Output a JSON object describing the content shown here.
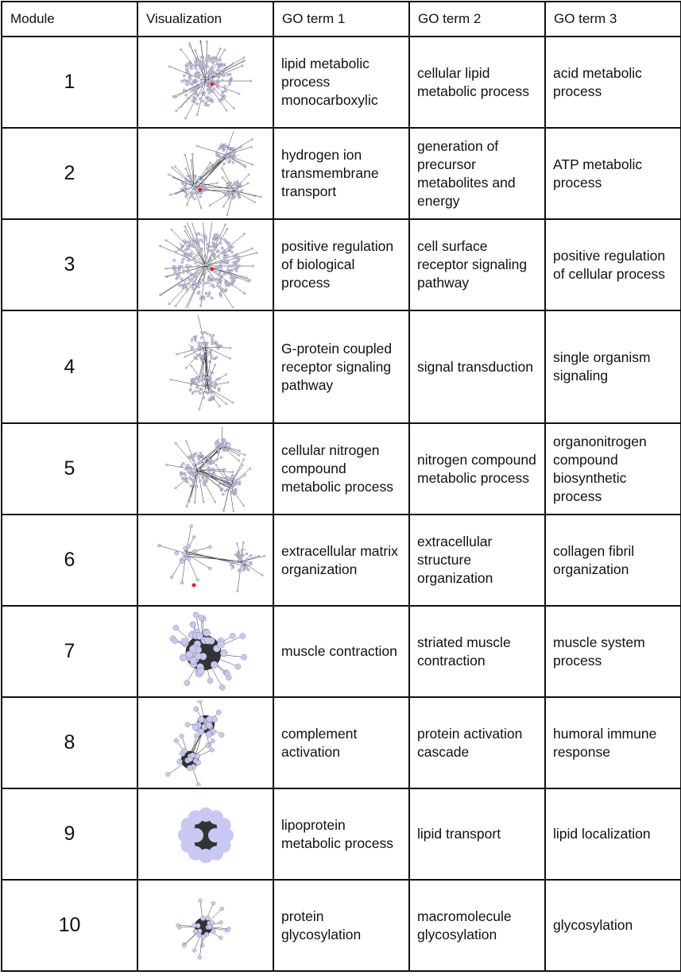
{
  "headers": [
    "Module",
    "Visualization",
    "GO term 1",
    "GO term 2",
    "GO term 3"
  ],
  "rows": [
    {
      "module": "1",
      "go1": "lipid metabolic process monocarboxylic",
      "go2": "cellular lipid metabolic process",
      "go3": "acid metabolic process"
    },
    {
      "module": "2",
      "go1": "hydrogen ion transmembrane transport",
      "go2": "generation of precursor metabolites and energy",
      "go3": "ATP metabolic process"
    },
    {
      "module": "3",
      "go1": "positive regulation of biological process",
      "go2": "cell surface receptor signaling pathway",
      "go3": "positive regulation of cellular process"
    },
    {
      "module": "4",
      "go1": "G-protein coupled receptor signaling pathway",
      "go2": "signal transduction",
      "go3": "single organism signaling"
    },
    {
      "module": "5",
      "go1": "cellular nitrogen compound metabolic process",
      "go2": "nitrogen compound metabolic process",
      "go3": "organonitrogen compound biosynthetic process"
    },
    {
      "module": "6",
      "go1": "extracellular matrix organization",
      "go2": "extracellular structure organization",
      "go3": "collagen fibril organization"
    },
    {
      "module": "7",
      "go1": "muscle contraction",
      "go2": "striated muscle contraction",
      "go3": "muscle system process"
    },
    {
      "module": "8",
      "go1": "complement activation",
      "go2": "protein activation cascade",
      "go3": "humoral immune response"
    },
    {
      "module": "9",
      "go1": "lipoprotein metabolic process",
      "go2": "lipid transport",
      "go3": "lipid localization"
    },
    {
      "module": "10",
      "go1": "protein glycosylation",
      "go2": "macromolecule glycosylation",
      "go3": "glycosylation"
    }
  ],
  "colors": {
    "node": "#c8c8f2",
    "edge": "#333333",
    "highlight": "#dd2222",
    "border": "#111111"
  }
}
